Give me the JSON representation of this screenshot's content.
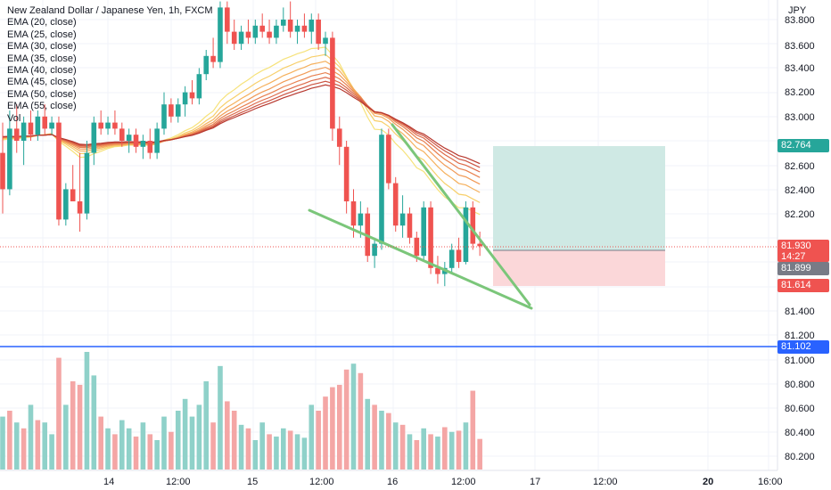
{
  "header": {
    "title": "New Zealand Dollar / Japanese Yen, 1h, FXCM",
    "currency": "JPY"
  },
  "legend": {
    "items": [
      "EMA (20, close)",
      "EMA (25, close)",
      "EMA (30, close)",
      "EMA (35, close)",
      "EMA (40, close)",
      "EMA (45, close)",
      "EMA (50, close)",
      "EMA (55, close)",
      "Vol"
    ]
  },
  "price_axis": {
    "ticks": [
      "83.800",
      "83.600",
      "83.400",
      "83.200",
      "83.000",
      "82.600",
      "82.400",
      "82.200",
      "81.400",
      "81.200",
      "81.000",
      "80.800",
      "80.600",
      "80.400",
      "80.200"
    ]
  },
  "time_axis": {
    "ticks": [
      "14",
      "12:00",
      "15",
      "12:00",
      "16",
      "12:00",
      "17",
      "12:00",
      "20",
      "16:00"
    ]
  },
  "price_labels": {
    "target": "82.764",
    "last": "81.930",
    "countdown": "14:27",
    "entry": "81.899",
    "stop": "81.614",
    "level": "81.102"
  },
  "colors": {
    "up": "#26a69a",
    "down": "#ef5350",
    "vol_up": "#8fd1c9",
    "vol_down": "#f4a6a5",
    "target_zone": "#cfe9e4",
    "stop_zone": "#fbd7d9",
    "level_line": "#2962ff",
    "trendline": "#7bc67a",
    "target_label": "#26a69a",
    "last_label": "#ef5350",
    "entry_label": "#787b86",
    "stop_label": "#ef5350",
    "level_label": "#2962ff"
  },
  "chart_data": {
    "type": "candlestick",
    "title": "New Zealand Dollar / Japanese Yen, 1h, FXCM",
    "ylabel": "JPY",
    "ylim": [
      80.1,
      83.9
    ],
    "x_labels": [
      "14",
      "12:00",
      "15",
      "12:00",
      "16",
      "12:00",
      "17",
      "12:00",
      "20",
      "16:00"
    ],
    "candles": [
      {
        "o": 82.7,
        "h": 82.95,
        "l": 82.2,
        "c": 82.4
      },
      {
        "o": 82.4,
        "h": 83.05,
        "l": 82.35,
        "c": 82.9
      },
      {
        "o": 82.9,
        "h": 83.1,
        "l": 82.7,
        "c": 82.8
      },
      {
        "o": 82.8,
        "h": 83.0,
        "l": 82.6,
        "c": 82.95
      },
      {
        "o": 82.95,
        "h": 83.05,
        "l": 82.8,
        "c": 82.85
      },
      {
        "o": 82.85,
        "h": 83.05,
        "l": 82.8,
        "c": 83.0
      },
      {
        "o": 83.0,
        "h": 83.1,
        "l": 82.85,
        "c": 82.9
      },
      {
        "o": 82.9,
        "h": 83.0,
        "l": 82.85,
        "c": 82.95
      },
      {
        "o": 82.95,
        "h": 83.0,
        "l": 82.1,
        "c": 82.15
      },
      {
        "o": 82.15,
        "h": 82.45,
        "l": 82.1,
        "c": 82.4
      },
      {
        "o": 82.4,
        "h": 82.6,
        "l": 82.3,
        "c": 82.3
      },
      {
        "o": 82.3,
        "h": 82.7,
        "l": 82.05,
        "c": 82.2
      },
      {
        "o": 82.2,
        "h": 82.8,
        "l": 82.15,
        "c": 82.7
      },
      {
        "o": 82.7,
        "h": 83.0,
        "l": 82.6,
        "c": 82.95
      },
      {
        "o": 82.95,
        "h": 83.05,
        "l": 82.85,
        "c": 82.9
      },
      {
        "o": 82.9,
        "h": 83.0,
        "l": 82.85,
        "c": 82.95
      },
      {
        "o": 82.95,
        "h": 83.05,
        "l": 82.85,
        "c": 82.9
      },
      {
        "o": 82.9,
        "h": 82.95,
        "l": 82.75,
        "c": 82.8
      },
      {
        "o": 82.8,
        "h": 82.9,
        "l": 82.7,
        "c": 82.85
      },
      {
        "o": 82.85,
        "h": 82.9,
        "l": 82.7,
        "c": 82.75
      },
      {
        "o": 82.75,
        "h": 82.85,
        "l": 82.65,
        "c": 82.8
      },
      {
        "o": 82.8,
        "h": 82.9,
        "l": 82.65,
        "c": 82.7
      },
      {
        "o": 82.7,
        "h": 82.95,
        "l": 82.65,
        "c": 82.9
      },
      {
        "o": 82.9,
        "h": 83.2,
        "l": 82.85,
        "c": 83.1
      },
      {
        "o": 83.1,
        "h": 83.15,
        "l": 82.95,
        "c": 83.0
      },
      {
        "o": 83.0,
        "h": 83.15,
        "l": 82.95,
        "c": 83.1
      },
      {
        "o": 83.1,
        "h": 83.25,
        "l": 83.0,
        "c": 83.2
      },
      {
        "o": 83.2,
        "h": 83.3,
        "l": 83.1,
        "c": 83.15
      },
      {
        "o": 83.15,
        "h": 83.4,
        "l": 83.1,
        "c": 83.35
      },
      {
        "o": 83.35,
        "h": 83.55,
        "l": 83.3,
        "c": 83.5
      },
      {
        "o": 83.5,
        "h": 83.65,
        "l": 83.4,
        "c": 83.45
      },
      {
        "o": 83.45,
        "h": 83.95,
        "l": 83.4,
        "c": 83.9
      },
      {
        "o": 83.9,
        "h": 83.95,
        "l": 83.6,
        "c": 83.7
      },
      {
        "o": 83.7,
        "h": 83.8,
        "l": 83.55,
        "c": 83.6
      },
      {
        "o": 83.6,
        "h": 83.75,
        "l": 83.55,
        "c": 83.7
      },
      {
        "o": 83.7,
        "h": 83.8,
        "l": 83.6,
        "c": 83.65
      },
      {
        "o": 83.65,
        "h": 83.8,
        "l": 83.6,
        "c": 83.75
      },
      {
        "o": 83.75,
        "h": 83.85,
        "l": 83.65,
        "c": 83.7
      },
      {
        "o": 83.7,
        "h": 83.8,
        "l": 83.6,
        "c": 83.65
      },
      {
        "o": 83.65,
        "h": 83.8,
        "l": 83.6,
        "c": 83.75
      },
      {
        "o": 83.75,
        "h": 83.9,
        "l": 83.7,
        "c": 83.8
      },
      {
        "o": 83.8,
        "h": 83.95,
        "l": 83.65,
        "c": 83.7
      },
      {
        "o": 83.7,
        "h": 83.8,
        "l": 83.6,
        "c": 83.75
      },
      {
        "o": 83.75,
        "h": 83.85,
        "l": 83.65,
        "c": 83.7
      },
      {
        "o": 83.7,
        "h": 83.85,
        "l": 83.6,
        "c": 83.8
      },
      {
        "o": 83.8,
        "h": 83.85,
        "l": 83.55,
        "c": 83.6
      },
      {
        "o": 83.6,
        "h": 83.7,
        "l": 83.5,
        "c": 83.65
      },
      {
        "o": 83.65,
        "h": 83.7,
        "l": 82.8,
        "c": 82.9
      },
      {
        "o": 82.9,
        "h": 83.0,
        "l": 82.6,
        "c": 82.75
      },
      {
        "o": 82.75,
        "h": 82.8,
        "l": 82.2,
        "c": 82.3
      },
      {
        "o": 82.3,
        "h": 82.4,
        "l": 82.0,
        "c": 82.1
      },
      {
        "o": 82.1,
        "h": 82.3,
        "l": 82.0,
        "c": 82.2
      },
      {
        "o": 82.2,
        "h": 82.25,
        "l": 81.8,
        "c": 81.85
      },
      {
        "o": 81.85,
        "h": 82.0,
        "l": 81.75,
        "c": 81.95
      },
      {
        "o": 81.95,
        "h": 82.9,
        "l": 81.9,
        "c": 82.85
      },
      {
        "o": 82.85,
        "h": 82.9,
        "l": 82.4,
        "c": 82.45
      },
      {
        "o": 82.45,
        "h": 82.5,
        "l": 82.05,
        "c": 82.1
      },
      {
        "o": 82.1,
        "h": 82.35,
        "l": 82.0,
        "c": 82.2
      },
      {
        "o": 82.2,
        "h": 82.25,
        "l": 81.95,
        "c": 82.0
      },
      {
        "o": 82.0,
        "h": 82.05,
        "l": 81.8,
        "c": 81.85
      },
      {
        "o": 81.85,
        "h": 82.3,
        "l": 81.8,
        "c": 82.25
      },
      {
        "o": 82.25,
        "h": 82.3,
        "l": 81.7,
        "c": 81.75
      },
      {
        "o": 81.75,
        "h": 81.85,
        "l": 81.62,
        "c": 81.7
      },
      {
        "o": 81.7,
        "h": 81.8,
        "l": 81.6,
        "c": 81.75
      },
      {
        "o": 81.75,
        "h": 81.95,
        "l": 81.7,
        "c": 81.9
      },
      {
        "o": 81.9,
        "h": 82.0,
        "l": 81.75,
        "c": 81.8
      },
      {
        "o": 81.8,
        "h": 82.3,
        "l": 81.78,
        "c": 82.25
      },
      {
        "o": 82.25,
        "h": 82.3,
        "l": 81.9,
        "c": 81.95
      },
      {
        "o": 81.95,
        "h": 82.05,
        "l": 81.85,
        "c": 81.93
      }
    ],
    "volume": [
      {
        "v": 0.45,
        "up": true
      },
      {
        "v": 0.5,
        "up": false
      },
      {
        "v": 0.4,
        "up": true
      },
      {
        "v": 0.35,
        "up": false
      },
      {
        "v": 0.55,
        "up": true
      },
      {
        "v": 0.42,
        "up": false
      },
      {
        "v": 0.4,
        "up": true
      },
      {
        "v": 0.3,
        "up": true
      },
      {
        "v": 0.95,
        "up": false
      },
      {
        "v": 0.55,
        "up": true
      },
      {
        "v": 0.75,
        "up": false
      },
      {
        "v": 0.72,
        "up": false
      },
      {
        "v": 1.0,
        "up": true
      },
      {
        "v": 0.8,
        "up": true
      },
      {
        "v": 0.45,
        "up": false
      },
      {
        "v": 0.35,
        "up": true
      },
      {
        "v": 0.3,
        "up": false
      },
      {
        "v": 0.42,
        "up": true
      },
      {
        "v": 0.35,
        "up": true
      },
      {
        "v": 0.28,
        "up": false
      },
      {
        "v": 0.4,
        "up": true
      },
      {
        "v": 0.3,
        "up": false
      },
      {
        "v": 0.25,
        "up": true
      },
      {
        "v": 0.45,
        "up": true
      },
      {
        "v": 0.32,
        "up": false
      },
      {
        "v": 0.5,
        "up": true
      },
      {
        "v": 0.6,
        "up": true
      },
      {
        "v": 0.45,
        "up": true
      },
      {
        "v": 0.55,
        "up": true
      },
      {
        "v": 0.75,
        "up": true
      },
      {
        "v": 0.4,
        "up": false
      },
      {
        "v": 0.88,
        "up": true
      },
      {
        "v": 0.58,
        "up": false
      },
      {
        "v": 0.5,
        "up": false
      },
      {
        "v": 0.38,
        "up": true
      },
      {
        "v": 0.35,
        "up": false
      },
      {
        "v": 0.25,
        "up": true
      },
      {
        "v": 0.4,
        "up": true
      },
      {
        "v": 0.3,
        "up": false
      },
      {
        "v": 0.28,
        "up": true
      },
      {
        "v": 0.35,
        "up": true
      },
      {
        "v": 0.33,
        "up": false
      },
      {
        "v": 0.3,
        "up": true
      },
      {
        "v": 0.27,
        "up": true
      },
      {
        "v": 0.55,
        "up": true
      },
      {
        "v": 0.5,
        "up": false
      },
      {
        "v": 0.62,
        "up": false
      },
      {
        "v": 0.7,
        "up": false
      },
      {
        "v": 0.72,
        "up": false
      },
      {
        "v": 0.85,
        "up": false
      },
      {
        "v": 0.9,
        "up": true
      },
      {
        "v": 0.82,
        "up": false
      },
      {
        "v": 0.6,
        "up": true
      },
      {
        "v": 0.55,
        "up": false
      },
      {
        "v": 0.5,
        "up": true
      },
      {
        "v": 0.48,
        "up": false
      },
      {
        "v": 0.4,
        "up": true
      },
      {
        "v": 0.38,
        "up": false
      },
      {
        "v": 0.3,
        "up": true
      },
      {
        "v": 0.25,
        "up": false
      },
      {
        "v": 0.35,
        "up": true
      },
      {
        "v": 0.3,
        "up": false
      },
      {
        "v": 0.28,
        "up": true
      },
      {
        "v": 0.36,
        "up": false
      },
      {
        "v": 0.32,
        "up": true
      },
      {
        "v": 0.33,
        "up": false
      },
      {
        "v": 0.4,
        "up": true
      },
      {
        "v": 0.67,
        "up": false
      },
      {
        "v": 0.26,
        "up": false
      }
    ],
    "ema_last_values": {
      "EMA (20, close)": 82.16,
      "EMA (25, close)": 82.26,
      "EMA (30, close)": 82.34,
      "EMA (35, close)": 82.42,
      "EMA (40, close)": 82.5,
      "EMA (45, close)": 82.57,
      "EMA (50, close)": 82.63,
      "EMA (55, close)": 82.69
    },
    "position": {
      "entry": 81.899,
      "target": 82.764,
      "stop": 81.614
    },
    "horizontal_line": 81.102,
    "last_price": 81.93
  }
}
